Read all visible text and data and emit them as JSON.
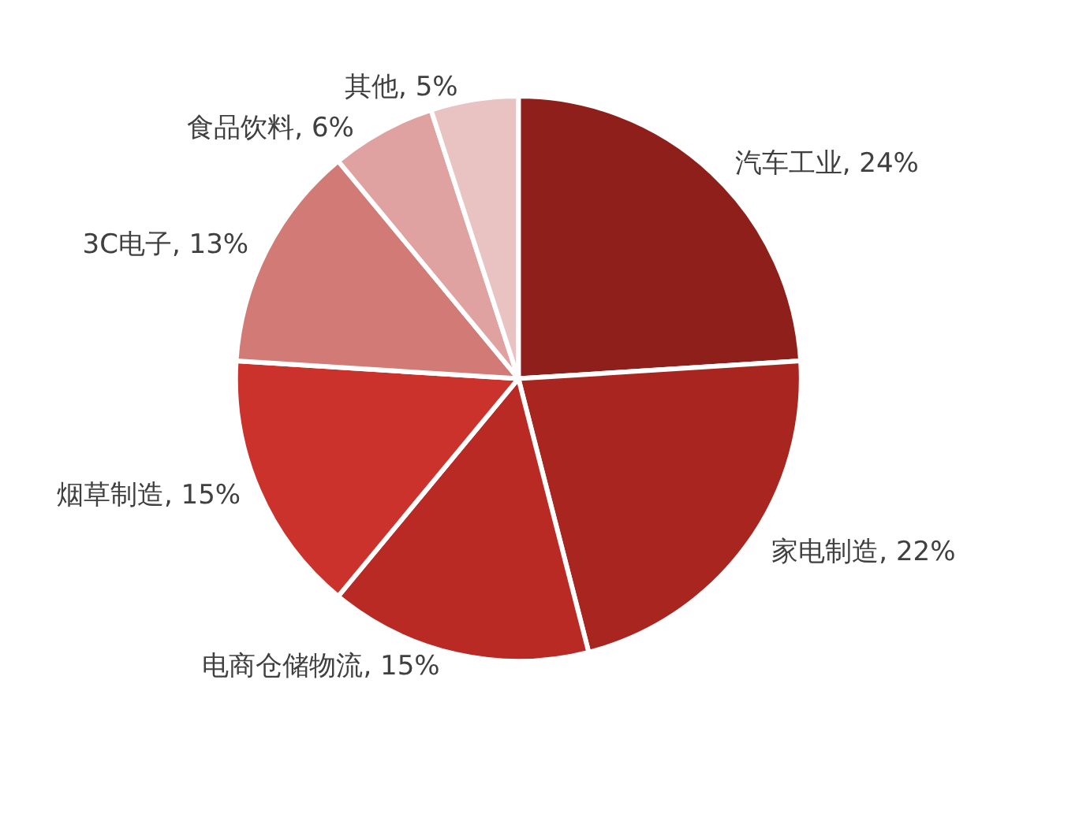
{
  "chart_data": {
    "type": "pie",
    "categories": [
      "汽车工业",
      "家电制造",
      "电商仓储物流",
      "烟草制造",
      "3C电子",
      "食品饮料",
      "其他"
    ],
    "value_labels": [
      "24%",
      "22%",
      "15%",
      "15%",
      "13%",
      "6%",
      "5%"
    ],
    "values": [
      24,
      22,
      15,
      15,
      13,
      6,
      5
    ],
    "colors": [
      "#8f1f1a",
      "#a8261f",
      "#b92a24",
      "#cb322b",
      "#d27b76",
      "#e0a2a0",
      "#e8c3c2"
    ],
    "data_labels": true,
    "legend": false
  }
}
